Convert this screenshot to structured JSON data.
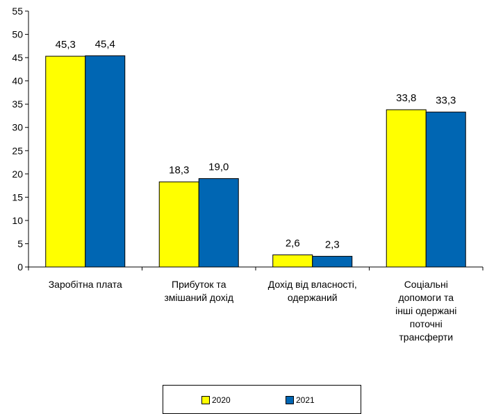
{
  "chart_data": {
    "type": "bar",
    "title": "",
    "xlabel": "",
    "ylabel": "",
    "categories": [
      "Заробітна  плата",
      "Прибуток та\nзмішаний дохід",
      "Дохід від власності,\nодержаний",
      "Соціальні\nдопомоги та\nінші одержані\nпоточні\nтрансферти"
    ],
    "series": [
      {
        "name": "2020",
        "values": [
          45.3,
          18.3,
          2.6,
          33.8
        ],
        "labels": [
          "45,3",
          "18,3",
          "2,6",
          "33,8"
        ],
        "color": "#ffff00"
      },
      {
        "name": "2021",
        "values": [
          45.4,
          19.0,
          2.3,
          33.3
        ],
        "labels": [
          "45,4",
          "19,0",
          "2,3",
          "33,3"
        ],
        "color": "#0066b3"
      }
    ],
    "ylim": [
      0,
      55
    ],
    "yticks": [
      0,
      5,
      10,
      15,
      20,
      25,
      30,
      35,
      40,
      45,
      50,
      55
    ],
    "grid": false,
    "legend": "bottom-center"
  }
}
